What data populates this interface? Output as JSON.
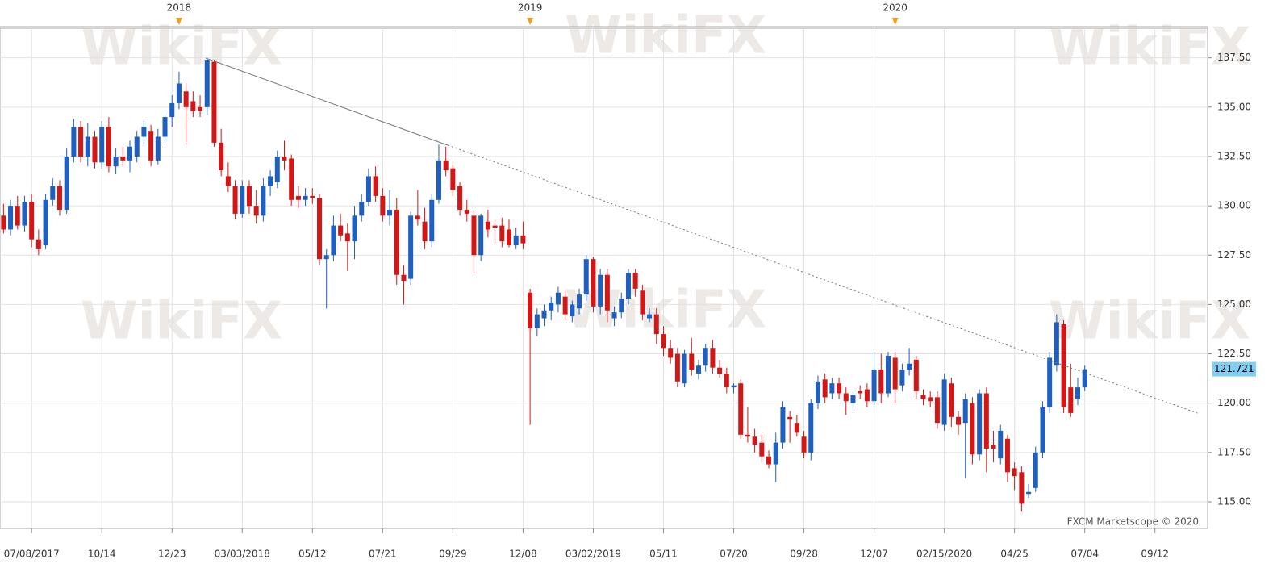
{
  "chart_data": {
    "type": "candlestick",
    "watermark": "WikiFX",
    "credit": "FXCM Marketscope © 2020",
    "years": [
      "2018",
      "2019",
      "2020"
    ],
    "last_price": 121.721,
    "up_color": "#1f5fbf",
    "down_color": "#d31616",
    "grid": true,
    "ylim": [
      113.65,
      139.0
    ],
    "yticks": [
      {
        "value": 115,
        "label": "115.00"
      },
      {
        "value": 117.5,
        "label": "117.50"
      },
      {
        "value": 120,
        "label": "120.00"
      },
      {
        "value": 122.5,
        "label": "122.50"
      },
      {
        "value": 125,
        "label": "125.00"
      },
      {
        "value": 127.5,
        "label": "127.50"
      },
      {
        "value": 130,
        "label": "130.00"
      },
      {
        "value": 132.5,
        "label": "132.50"
      },
      {
        "value": 135,
        "label": "135.00"
      },
      {
        "value": 137.5,
        "label": "137.50"
      }
    ],
    "categories": [
      null,
      null,
      null,
      null,
      "07/08/2017",
      null,
      null,
      null,
      null,
      null,
      null,
      null,
      null,
      null,
      "10/14",
      null,
      null,
      null,
      null,
      null,
      null,
      null,
      null,
      null,
      "12/23",
      null,
      null,
      null,
      null,
      null,
      null,
      null,
      null,
      null,
      "03/03/2018",
      null,
      null,
      null,
      null,
      null,
      null,
      null,
      null,
      null,
      "05/12",
      null,
      null,
      null,
      null,
      null,
      null,
      null,
      null,
      null,
      "07/21",
      null,
      null,
      null,
      null,
      null,
      null,
      null,
      null,
      null,
      "09/29",
      null,
      null,
      null,
      null,
      null,
      null,
      null,
      null,
      null,
      "12/08",
      null,
      null,
      null,
      null,
      null,
      null,
      null,
      null,
      null,
      "03/02/2019",
      null,
      null,
      null,
      null,
      null,
      null,
      null,
      null,
      null,
      "05/11",
      null,
      null,
      null,
      null,
      null,
      null,
      null,
      null,
      null,
      "07/20",
      null,
      null,
      null,
      null,
      null,
      null,
      null,
      null,
      null,
      "09/28",
      null,
      null,
      null,
      null,
      null,
      null,
      null,
      null,
      null,
      "12/07",
      null,
      null,
      null,
      null,
      null,
      null,
      null,
      null,
      null,
      "02/15/2020",
      null,
      null,
      null,
      null,
      null,
      null,
      null,
      null,
      null,
      "04/25",
      null,
      null,
      null,
      null,
      null,
      null,
      null,
      null,
      null,
      "07/04",
      null,
      null,
      null,
      null,
      null,
      null,
      null,
      null,
      null,
      "09/12",
      null,
      null,
      null,
      null,
      null,
      null,
      null
    ],
    "open": [
      129.5,
      128.8,
      130.0,
      129.0,
      130.2,
      128.3,
      128.0,
      130.3,
      131.0,
      129.8,
      132.5,
      134.0,
      132.5,
      133.5,
      132.2,
      134.0,
      132.0,
      132.5,
      132.3,
      132.5,
      133.5,
      133.8,
      132.3,
      133.5,
      134.5,
      135.2,
      135.8,
      135.3,
      135.0,
      135.0,
      137.3,
      133.2,
      131.5,
      131.0,
      129.6,
      131.0,
      130.0,
      129.5,
      131.0,
      131.2,
      132.5,
      132.4,
      130.5,
      130.3,
      130.5,
      130.4,
      127.3,
      127.5,
      129.0,
      128.6,
      128.2,
      129.5,
      130.2,
      131.5,
      130.5,
      129.5,
      129.8,
      126.5,
      126.3,
      129.5,
      129.2,
      128.2,
      130.3,
      132.3,
      131.9,
      131.0,
      129.8,
      129.5,
      127.5,
      129.2,
      129.0,
      129.0,
      128.8,
      128.0,
      128.5,
      125.6,
      123.8,
      124.3,
      124.7,
      125.0,
      125.4,
      124.4,
      124.8,
      125.5,
      127.3,
      124.9,
      126.5,
      124.3,
      124.6,
      125.3,
      126.6,
      125.7,
      124.3,
      124.5,
      123.5,
      122.8,
      122.5,
      121.0,
      122.5,
      121.5,
      121.9,
      122.8,
      121.8,
      121.5,
      120.8,
      121.0,
      118.4,
      118.3,
      118.0,
      117.3,
      116.9,
      118.0,
      119.3,
      119.0,
      118.3,
      117.5,
      120.0,
      121.2,
      120.5,
      121.0,
      120.5,
      120.0,
      120.6,
      120.7,
      120.1,
      121.7,
      120.5,
      122.3,
      120.9,
      121.7,
      122.2,
      120.4,
      120.3,
      120.3,
      118.9,
      121.0,
      119.3,
      119.0,
      120.0,
      117.4,
      120.5,
      117.9,
      117.2,
      118.2,
      116.7,
      116.5,
      115.4,
      115.7,
      117.5,
      119.8,
      121.9,
      124.0,
      120.8,
      120.2,
      120.8,
      null,
      null,
      null,
      null,
      null,
      null,
      null,
      null,
      null,
      null,
      null,
      null,
      null,
      null,
      null,
      null,
      null
    ],
    "high": [
      130.1,
      130.3,
      130.5,
      130.5,
      130.6,
      128.8,
      130.6,
      131.4,
      131.3,
      132.9,
      134.4,
      134.3,
      134.2,
      133.8,
      134.3,
      134.5,
      132.9,
      133.0,
      133.3,
      133.8,
      134.3,
      134.1,
      133.9,
      134.8,
      135.6,
      136.8,
      136.2,
      135.8,
      135.6,
      137.5,
      137.4,
      133.9,
      132.2,
      131.3,
      131.3,
      131.3,
      130.8,
      131.4,
      131.8,
      132.8,
      133.3,
      132.6,
      131.0,
      130.9,
      130.9,
      130.6,
      127.8,
      129.5,
      129.6,
      129.1,
      130.0,
      130.6,
      131.9,
      132.0,
      130.9,
      130.8,
      130.4,
      127.0,
      129.7,
      130.8,
      129.9,
      130.6,
      133.1,
      133.0,
      132.2,
      131.2,
      130.3,
      129.8,
      129.6,
      129.8,
      129.3,
      129.4,
      129.3,
      128.9,
      129.2,
      125.8,
      124.8,
      125.0,
      125.4,
      125.9,
      125.7,
      125.2,
      125.8,
      127.5,
      127.4,
      126.8,
      126.8,
      124.9,
      125.6,
      126.8,
      126.8,
      126.0,
      124.8,
      124.8,
      123.9,
      123.2,
      122.8,
      122.7,
      123.3,
      122.2,
      123.0,
      123.2,
      122.2,
      121.8,
      121.0,
      121.2,
      119.8,
      118.7,
      118.4,
      117.6,
      118.5,
      120.1,
      119.6,
      119.4,
      118.6,
      120.2,
      121.4,
      121.5,
      121.3,
      121.3,
      120.8,
      120.7,
      120.9,
      121.0,
      122.6,
      122.5,
      122.6,
      122.6,
      122.0,
      122.8,
      122.4,
      120.7,
      120.6,
      120.6,
      121.5,
      121.3,
      119.6,
      120.5,
      120.3,
      120.7,
      120.8,
      118.6,
      118.9,
      118.4,
      117.0,
      116.8,
      115.9,
      117.8,
      120.1,
      122.6,
      124.5,
      124.2,
      122.0,
      121.3,
      121.9,
      null,
      null,
      null,
      null,
      null,
      null,
      null,
      null,
      null,
      null,
      null,
      null,
      null,
      null,
      null,
      null,
      null
    ],
    "low": [
      128.6,
      128.5,
      128.8,
      128.7,
      127.9,
      127.5,
      127.8,
      130.0,
      129.5,
      129.6,
      132.2,
      132.2,
      132.0,
      131.9,
      131.9,
      131.7,
      131.6,
      132.0,
      131.7,
      132.2,
      133.0,
      132.0,
      132.1,
      133.2,
      134.0,
      134.9,
      133.1,
      134.5,
      134.5,
      134.6,
      133.0,
      131.5,
      130.7,
      129.3,
      129.4,
      129.6,
      129.1,
      129.2,
      130.5,
      130.9,
      131.8,
      130.0,
      129.9,
      130.0,
      130.1,
      127.0,
      124.8,
      127.2,
      128.2,
      126.7,
      127.3,
      129.2,
      130.0,
      130.2,
      129.2,
      129.0,
      126.0,
      125.0,
      126.0,
      129.0,
      127.8,
      127.9,
      130.1,
      131.5,
      130.5,
      129.5,
      129.2,
      126.6,
      127.2,
      128.4,
      128.1,
      127.9,
      127.9,
      127.8,
      127.8,
      118.9,
      123.4,
      123.9,
      124.2,
      124.6,
      124.2,
      124.1,
      124.5,
      125.2,
      124.6,
      124.5,
      124.1,
      123.9,
      124.3,
      125.0,
      125.4,
      124.2,
      124.1,
      123.0,
      122.4,
      122.0,
      120.8,
      120.8,
      121.4,
      121.2,
      121.6,
      121.5,
      121.3,
      120.5,
      120.5,
      118.2,
      118.0,
      117.5,
      117.0,
      116.7,
      116.0,
      117.7,
      118.0,
      118.3,
      117.2,
      117.1,
      119.7,
      120.0,
      120.2,
      120.2,
      119.4,
      119.7,
      120.2,
      119.8,
      119.9,
      120.0,
      120.3,
      120.0,
      120.6,
      121.4,
      120.2,
      119.9,
      119.8,
      118.7,
      118.6,
      118.8,
      118.4,
      116.2,
      116.9,
      117.1,
      116.5,
      117.0,
      116.9,
      116.0,
      115.6,
      114.5,
      115.2,
      115.5,
      117.2,
      119.5,
      121.6,
      119.5,
      119.3,
      119.9,
      120.6,
      null,
      null,
      null,
      null,
      null,
      null,
      null,
      null,
      null,
      null,
      null,
      null,
      null,
      null,
      null,
      null,
      null
    ],
    "close": [
      128.8,
      130.0,
      129.0,
      130.2,
      128.3,
      127.8,
      130.3,
      131.0,
      129.8,
      132.5,
      134.0,
      132.5,
      133.5,
      132.2,
      134.0,
      132.0,
      132.5,
      132.3,
      133.0,
      133.5,
      134.0,
      132.3,
      133.5,
      134.5,
      135.2,
      136.2,
      135.0,
      134.8,
      134.8,
      137.4,
      133.2,
      131.8,
      131.0,
      129.6,
      131.0,
      130.0,
      129.5,
      131.0,
      131.5,
      132.5,
      132.3,
      130.3,
      130.3,
      130.5,
      130.4,
      127.3,
      127.5,
      129.0,
      128.5,
      128.2,
      129.5,
      130.2,
      131.5,
      130.5,
      129.5,
      129.8,
      126.5,
      126.2,
      129.5,
      129.3,
      128.2,
      130.3,
      132.3,
      131.8,
      130.8,
      129.8,
      129.6,
      127.5,
      129.5,
      128.8,
      128.9,
      128.2,
      128.0,
      128.5,
      128.1,
      123.8,
      124.5,
      124.7,
      125.1,
      125.6,
      124.5,
      125.0,
      125.5,
      127.3,
      124.9,
      126.5,
      124.7,
      124.6,
      125.3,
      126.6,
      125.8,
      124.5,
      124.5,
      123.5,
      122.8,
      122.3,
      121.1,
      122.5,
      121.7,
      121.9,
      122.8,
      121.8,
      121.5,
      120.8,
      120.9,
      118.4,
      118.3,
      117.9,
      117.3,
      116.9,
      118.0,
      119.8,
      119.2,
      118.5,
      117.5,
      120.0,
      121.1,
      120.3,
      121.0,
      120.5,
      120.1,
      120.4,
      120.5,
      120.1,
      121.7,
      120.5,
      122.4,
      120.7,
      121.7,
      122.0,
      120.6,
      120.2,
      120.1,
      119.0,
      121.2,
      119.3,
      118.9,
      120.2,
      117.4,
      120.5,
      117.7,
      117.7,
      118.6,
      116.5,
      116.3,
      114.9,
      115.5,
      117.5,
      119.8,
      122.3,
      124.1,
      119.8,
      119.5,
      120.8,
      121.721,
      null,
      null,
      null,
      null,
      null,
      null,
      null,
      null,
      null,
      null,
      null,
      null,
      null,
      null,
      null,
      null,
      null
    ]
  }
}
